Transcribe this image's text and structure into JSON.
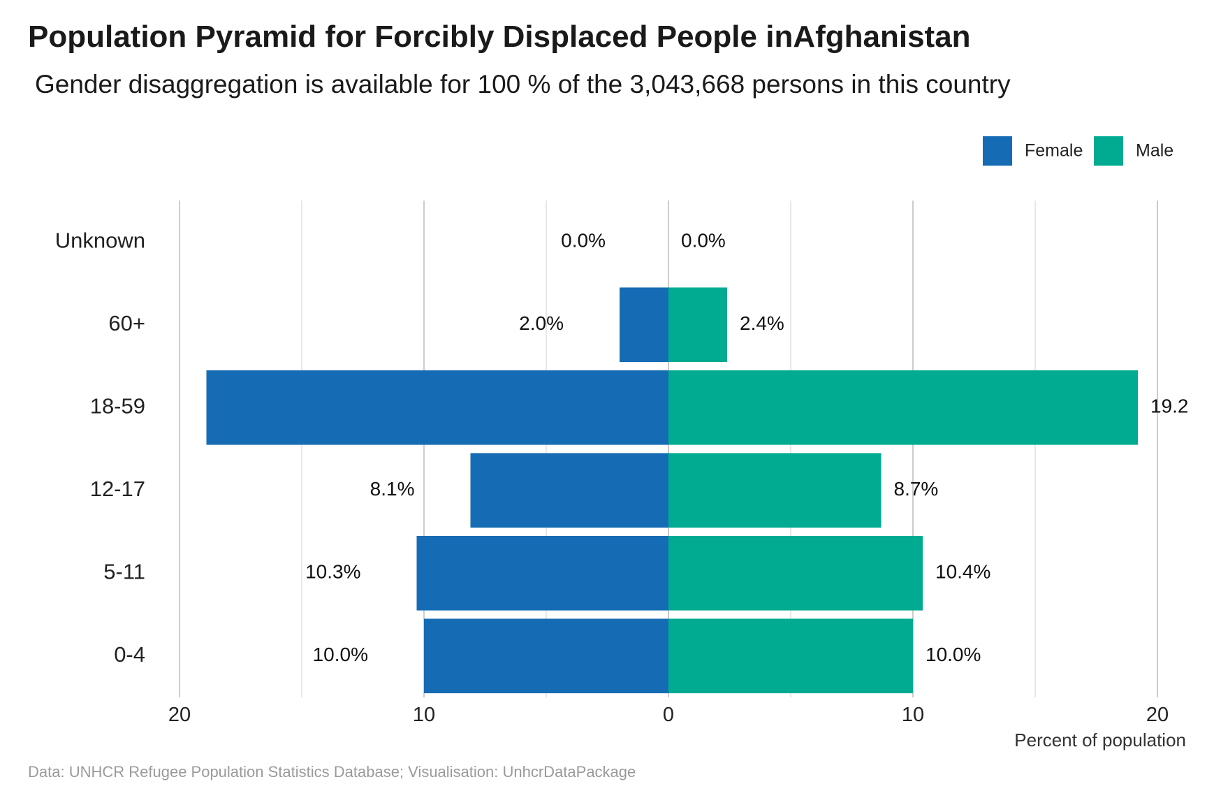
{
  "chart_data": {
    "type": "bar",
    "title": "Population Pyramid for Forcibly Displaced People inAfghanistan",
    "subtitle": "Gender disaggregation is available for 100 % of the 3,043,668 persons in this country",
    "caption": "Data: UNHCR Refugee Population Statistics Database; Visualisation: UnhcrDataPackage",
    "xlabel": "Percent of population",
    "ylabel": "",
    "orientation": "horizontal-diverging",
    "categories": [
      "Unknown",
      "60+",
      "18-59",
      "12-17",
      "5-11",
      "0-4"
    ],
    "series": [
      {
        "name": "Female",
        "color": "#156cb4",
        "direction": "left",
        "values": [
          0.0,
          2.0,
          18.9,
          8.1,
          10.3,
          10.0
        ],
        "labels": [
          "0.0%",
          "2.0%",
          "",
          "8.1%",
          "10.3%",
          "10.0%"
        ]
      },
      {
        "name": "Male",
        "color": "#00ab92",
        "direction": "right",
        "values": [
          0.0,
          2.4,
          19.2,
          8.7,
          10.4,
          10.0
        ],
        "labels": [
          "0.0%",
          "2.4%",
          "19.2",
          "8.7%",
          "10.4%",
          "10.0%"
        ]
      }
    ],
    "xlim": [
      -20,
      20
    ],
    "xticks": [
      {
        "value": -20,
        "label": "20"
      },
      {
        "value": -10,
        "label": "10"
      },
      {
        "value": 0,
        "label": "0"
      },
      {
        "value": 10,
        "label": "10"
      },
      {
        "value": 20,
        "label": "20"
      }
    ],
    "minor_gridlines": [
      -15,
      -5,
      5,
      15
    ],
    "grid": true,
    "legend_position": "top-right"
  }
}
